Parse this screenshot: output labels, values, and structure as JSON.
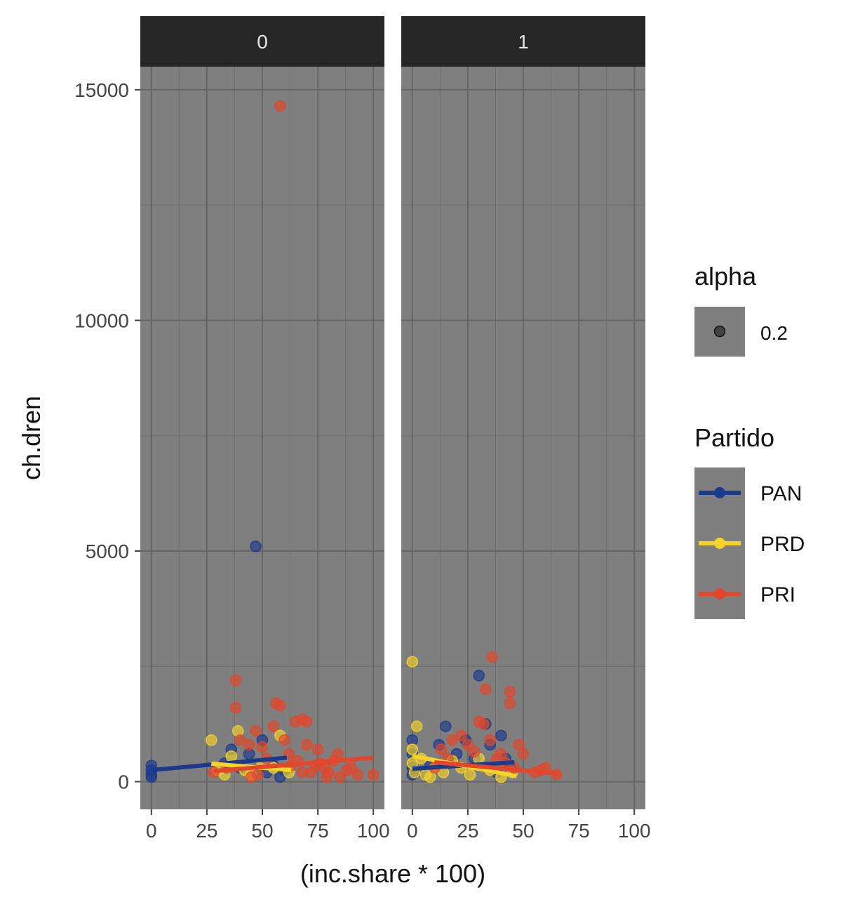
{
  "chart_data": {
    "type": "scatter",
    "xlabel": "(inc.share * 100)",
    "ylabel": "ch.dren",
    "xlim": [
      -5,
      105
    ],
    "ylim": [
      -600,
      15500
    ],
    "x_ticks": [
      0,
      25,
      50,
      75,
      100
    ],
    "y_ticks": [
      0,
      5000,
      10000,
      15000
    ],
    "grid": true,
    "facets": [
      "0",
      "1"
    ],
    "legend": {
      "placement": "right",
      "alpha_title": "alpha",
      "alpha_value": "0.2",
      "party_title": "Partido",
      "items": [
        {
          "name": "PAN",
          "color": "#1b3a8c"
        },
        {
          "name": "PRD",
          "color": "#f5d328"
        },
        {
          "name": "PRI",
          "color": "#e3462a"
        }
      ]
    },
    "series": [
      {
        "name": "PAN",
        "facet": "0",
        "x": [
          0,
          0,
          0,
          0,
          33,
          36,
          40,
          44,
          47,
          50,
          52,
          55,
          58,
          60
        ],
        "y": [
          150,
          250,
          350,
          100,
          400,
          700,
          300,
          600,
          5100,
          900,
          200,
          350,
          100,
          250
        ]
      },
      {
        "name": "PRD",
        "facet": "0",
        "x": [
          27,
          30,
          33,
          36,
          39,
          42,
          45,
          50,
          55,
          58,
          62
        ],
        "y": [
          900,
          250,
          150,
          550,
          1100,
          250,
          150,
          400,
          300,
          1000,
          200
        ]
      },
      {
        "name": "PRI",
        "facet": "0",
        "x": [
          38,
          38,
          40,
          44,
          47,
          50,
          52,
          55,
          56,
          58,
          58,
          60,
          62,
          65,
          66,
          68,
          70,
          70,
          72,
          74,
          75,
          78,
          80,
          82,
          84,
          85,
          88,
          90,
          93,
          100,
          28,
          34,
          45,
          48,
          63,
          68,
          76,
          79
        ],
        "y": [
          2200,
          1600,
          900,
          800,
          1100,
          750,
          500,
          1200,
          1700,
          1650,
          14650,
          900,
          600,
          1300,
          450,
          1350,
          1300,
          800,
          200,
          350,
          700,
          300,
          200,
          450,
          600,
          100,
          250,
          300,
          150,
          150,
          200,
          300,
          100,
          150,
          350,
          200,
          400,
          100
        ]
      },
      {
        "name": "PAN",
        "facet": "1",
        "x": [
          0,
          0,
          0,
          0,
          5,
          8,
          12,
          15,
          20,
          24,
          28,
          30,
          33,
          35,
          38,
          40,
          42,
          44
        ],
        "y": [
          900,
          600,
          300,
          150,
          200,
          350,
          800,
          1200,
          600,
          900,
          500,
          2300,
          1250,
          800,
          200,
          1000,
          500,
          300
        ]
      },
      {
        "name": "PRD",
        "facet": "1",
        "x": [
          0,
          0,
          0,
          1,
          2,
          4,
          6,
          8,
          10,
          14,
          18,
          22,
          26,
          30,
          35,
          40,
          45
        ],
        "y": [
          2600,
          700,
          400,
          200,
          1200,
          500,
          150,
          100,
          300,
          200,
          450,
          300,
          150,
          500,
          250,
          100,
          200
        ]
      },
      {
        "name": "PRI",
        "facet": "1",
        "x": [
          10,
          13,
          16,
          18,
          22,
          25,
          28,
          30,
          32,
          33,
          35,
          36,
          38,
          40,
          42,
          44,
          44,
          46,
          48,
          50,
          55,
          58,
          60,
          65
        ],
        "y": [
          300,
          700,
          500,
          900,
          1000,
          800,
          650,
          1300,
          1250,
          2000,
          900,
          2700,
          500,
          600,
          400,
          1950,
          1700,
          300,
          800,
          600,
          200,
          250,
          300,
          150
        ]
      }
    ],
    "trend_lines": [
      {
        "name": "PAN",
        "facet": "0",
        "x": [
          0,
          61
        ],
        "y": [
          250,
          520
        ]
      },
      {
        "name": "PRD",
        "facet": "0",
        "x": [
          27,
          63
        ],
        "y": [
          390,
          250
        ]
      },
      {
        "name": "PRI",
        "facet": "0",
        "x": [
          28,
          100
        ],
        "y": [
          230,
          520
        ]
      },
      {
        "name": "PAN",
        "facet": "1",
        "x": [
          0,
          46
        ],
        "y": [
          280,
          420
        ]
      },
      {
        "name": "PRD",
        "facet": "1",
        "x": [
          0,
          47
        ],
        "y": [
          560,
          120
        ]
      },
      {
        "name": "PRI",
        "facet": "1",
        "x": [
          10,
          66
        ],
        "y": [
          420,
          170
        ]
      }
    ]
  }
}
